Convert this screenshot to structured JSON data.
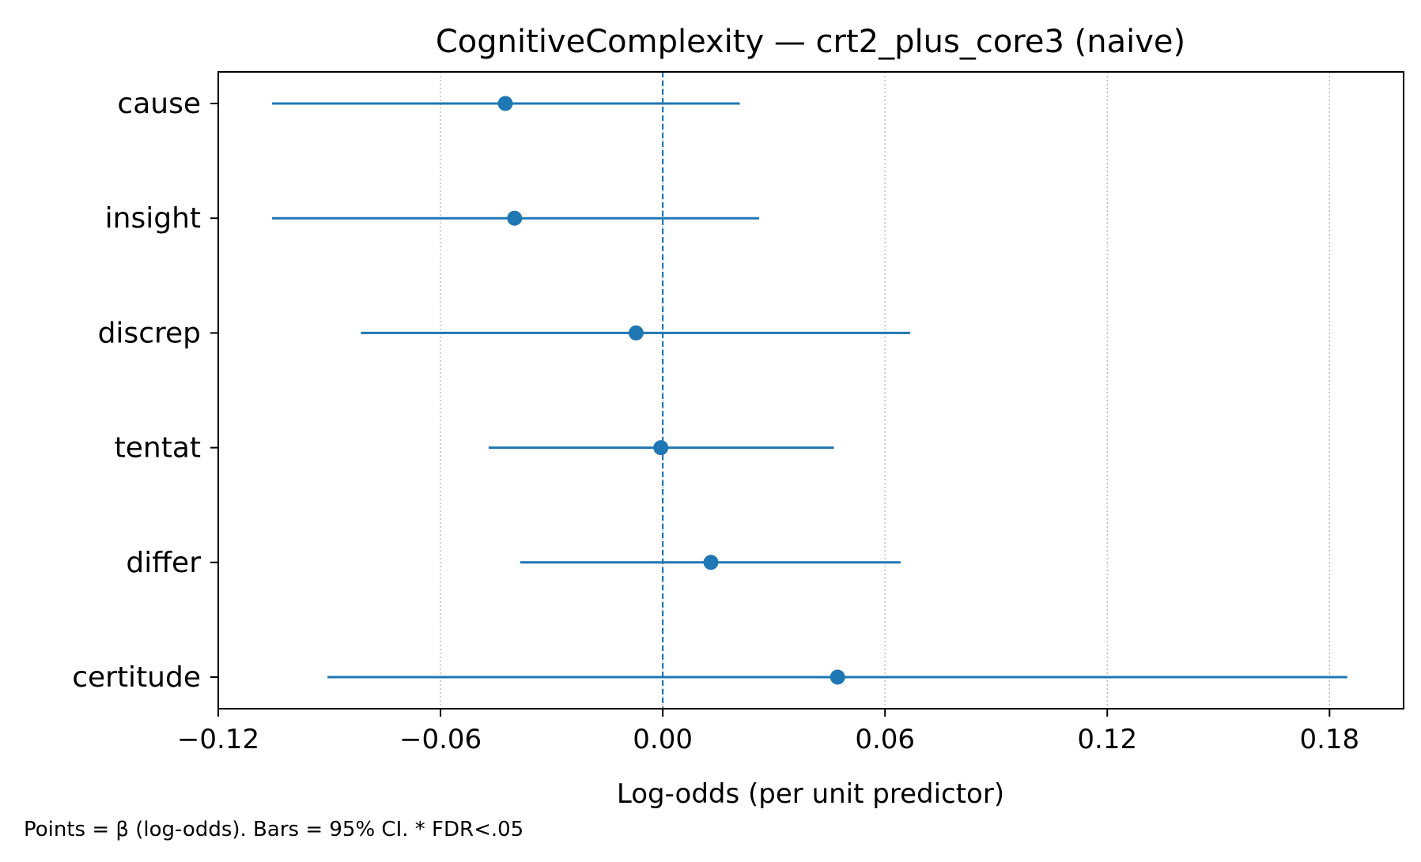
{
  "chart_data": {
    "type": "scatter",
    "title": "CognitiveComplexity — crt2_plus_core3 (naive)",
    "xlabel": "Log-odds (per unit predictor)",
    "ylabel": "",
    "xlim": [
      -0.12,
      0.2
    ],
    "xticks": [
      -0.12,
      -0.06,
      0.0,
      0.06,
      0.12,
      0.18
    ],
    "xtick_labels": [
      "−0.12",
      "−0.06",
      "0.00",
      "0.06",
      "0.12",
      "0.18"
    ],
    "grid": "x, dotted",
    "reference_line": {
      "x": 0.0,
      "style": "dashed"
    },
    "color": "#1f77b4",
    "categories": [
      "cause",
      "insight",
      "discrep",
      "tentat",
      "differ",
      "certitude"
    ],
    "estimates": [
      {
        "label": "cause",
        "beta": -0.0425,
        "ci_low": -0.1055,
        "ci_high": 0.0208
      },
      {
        "label": "insight",
        "beta": -0.04,
        "ci_low": -0.1055,
        "ci_high": 0.026
      },
      {
        "label": "discrep",
        "beta": -0.0072,
        "ci_low": -0.0815,
        "ci_high": 0.0668
      },
      {
        "label": "tentat",
        "beta": -0.0005,
        "ci_low": -0.047,
        "ci_high": 0.0462
      },
      {
        "label": "differ",
        "beta": 0.013,
        "ci_low": -0.0385,
        "ci_high": 0.0642
      },
      {
        "label": "certitude",
        "beta": 0.0472,
        "ci_low": -0.0905,
        "ci_high": 0.1848
      }
    ],
    "footnote": "Points = β (log-odds). Bars = 95% CI. * FDR<.05"
  }
}
